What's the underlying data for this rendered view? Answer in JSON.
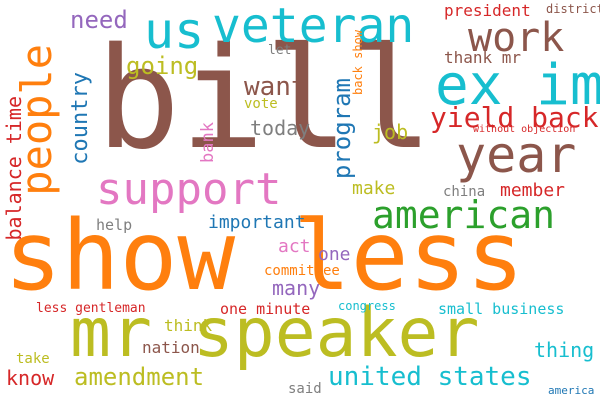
{
  "words": [
    {
      "text": "bill",
      "color": "#8c564b"
    },
    {
      "text": "show less",
      "color": "#ff7f0e"
    },
    {
      "text": "mr speaker",
      "color": "#bcbd22"
    },
    {
      "text": "veteran",
      "color": "#17becf"
    },
    {
      "text": "us",
      "color": "#17becf"
    },
    {
      "text": "ex im",
      "color": "#17becf"
    },
    {
      "text": "people",
      "color": "#ff7f0e"
    },
    {
      "text": "year",
      "color": "#8c564b"
    },
    {
      "text": "support",
      "color": "#e377c2"
    },
    {
      "text": "american",
      "color": "#2ca02c"
    },
    {
      "text": "work",
      "color": "#8c564b"
    },
    {
      "text": "yield back",
      "color": "#d62728"
    },
    {
      "text": "need",
      "color": "#9467bd"
    },
    {
      "text": "going",
      "color": "#bcbd22"
    },
    {
      "text": "want",
      "color": "#8c564b"
    },
    {
      "text": "country",
      "color": "#1f77b4"
    },
    {
      "text": "program",
      "color": "#1f77b4"
    },
    {
      "text": "balance time",
      "color": "#d62728"
    },
    {
      "text": "today",
      "color": "#7f7f7f"
    },
    {
      "text": "job",
      "color": "#bcbd22"
    },
    {
      "text": "bank",
      "color": "#e377c2"
    },
    {
      "text": "vote",
      "color": "#bcbd22"
    },
    {
      "text": "let",
      "color": "#7f7f7f"
    },
    {
      "text": "president",
      "color": "#d62728"
    },
    {
      "text": "thank mr",
      "color": "#8c564b"
    },
    {
      "text": "district",
      "color": "#8c564b"
    },
    {
      "text": "back show",
      "color": "#ff7f0e"
    },
    {
      "text": "without objection",
      "color": "#d62728"
    },
    {
      "text": "make",
      "color": "#bcbd22"
    },
    {
      "text": "china",
      "color": "#7f7f7f"
    },
    {
      "text": "member",
      "color": "#d62728"
    },
    {
      "text": "important",
      "color": "#1f77b4"
    },
    {
      "text": "help",
      "color": "#7f7f7f"
    },
    {
      "text": "act",
      "color": "#e377c2"
    },
    {
      "text": "one",
      "color": "#9467bd"
    },
    {
      "text": "committee",
      "color": "#ff7f0e"
    },
    {
      "text": "many",
      "color": "#9467bd"
    },
    {
      "text": "less gentleman",
      "color": "#d62728"
    },
    {
      "text": "one minute",
      "color": "#d62728"
    },
    {
      "text": "congress",
      "color": "#17becf"
    },
    {
      "text": "small business",
      "color": "#17becf"
    },
    {
      "text": "think",
      "color": "#bcbd22"
    },
    {
      "text": "nation",
      "color": "#8c564b"
    },
    {
      "text": "thing",
      "color": "#17becf"
    },
    {
      "text": "take",
      "color": "#bcbd22"
    },
    {
      "text": "know",
      "color": "#d62728"
    },
    {
      "text": "amendment",
      "color": "#bcbd22"
    },
    {
      "text": "united states",
      "color": "#17becf"
    },
    {
      "text": "said",
      "color": "#7f7f7f"
    },
    {
      "text": "america",
      "color": "#1f77b4"
    }
  ]
}
